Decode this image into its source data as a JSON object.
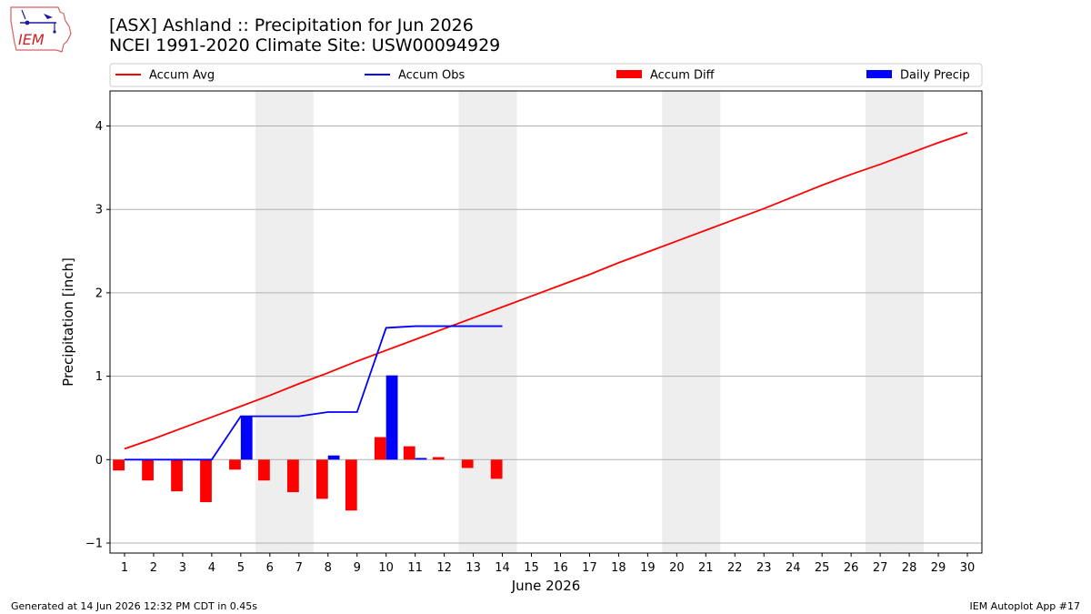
{
  "header": {
    "title_line1": "[ASX] Ashland :: Precipitation for Jun 2026",
    "title_line2": "NCEI 1991-2020 Climate Site: USW00094929",
    "logo_text": "IEM"
  },
  "footer": {
    "left": "Generated at 14 Jun 2026 12:32 PM CDT in 0.45s",
    "right": "IEM Autoplot App #17"
  },
  "colors": {
    "avg": "#ff0000",
    "obs": "#0000ff",
    "diff": "#ff0000",
    "daily": "#0000ff",
    "weekend": "#eeeeee",
    "grid": "#b0b0b0"
  },
  "chart_data": {
    "type": "bar",
    "xlabel": "June 2026",
    "ylabel": "Precipitation [inch]",
    "ylim": [
      -1.12,
      4.42
    ],
    "xlim": [
      0.5,
      30.5
    ],
    "yticks": [
      -1,
      0,
      1,
      2,
      3,
      4
    ],
    "xticks": [
      1,
      2,
      3,
      4,
      5,
      6,
      7,
      8,
      9,
      10,
      11,
      12,
      13,
      14,
      15,
      16,
      17,
      18,
      19,
      20,
      21,
      22,
      23,
      24,
      25,
      26,
      27,
      28,
      29,
      30
    ],
    "grid": "horizontal",
    "legend_position": "top",
    "legend": [
      "Accum Avg",
      "Accum Obs",
      "Accum Diff",
      "Daily Precip"
    ],
    "weekend_days": [
      6,
      7,
      13,
      14,
      20,
      21,
      27,
      28
    ],
    "accum_avg": {
      "name": "Accum Avg",
      "x": [
        1,
        2,
        3,
        4,
        5,
        6,
        7,
        8,
        9,
        10,
        11,
        12,
        13,
        14,
        15,
        16,
        17,
        18,
        19,
        20,
        21,
        22,
        23,
        24,
        25,
        26,
        27,
        28,
        29,
        30
      ],
      "values": [
        0.13,
        0.25,
        0.38,
        0.51,
        0.64,
        0.77,
        0.91,
        1.04,
        1.18,
        1.31,
        1.44,
        1.57,
        1.7,
        1.83,
        1.96,
        2.09,
        2.22,
        2.36,
        2.49,
        2.62,
        2.75,
        2.88,
        3.01,
        3.15,
        3.29,
        3.42,
        3.54,
        3.67,
        3.8,
        3.92
      ]
    },
    "accum_obs": {
      "name": "Accum Obs",
      "x": [
        1,
        2,
        3,
        4,
        5,
        6,
        7,
        8,
        9,
        10,
        11,
        12,
        13,
        14
      ],
      "values": [
        0,
        0,
        0,
        0,
        0.52,
        0.52,
        0.52,
        0.57,
        0.57,
        1.58,
        1.6,
        1.6,
        1.6,
        1.6
      ]
    },
    "accum_diff": {
      "name": "Accum Diff",
      "x": [
        1,
        2,
        3,
        4,
        5,
        6,
        7,
        8,
        9,
        10,
        11,
        12,
        13,
        14
      ],
      "values": [
        -0.13,
        -0.25,
        -0.38,
        -0.51,
        -0.12,
        -0.25,
        -0.39,
        -0.47,
        -0.61,
        0.27,
        0.16,
        0.03,
        -0.1,
        -0.23
      ]
    },
    "daily_precip": {
      "name": "Daily Precip",
      "x": [
        1,
        2,
        3,
        4,
        5,
        6,
        7,
        8,
        9,
        10,
        11,
        12,
        13,
        14
      ],
      "values": [
        0,
        0,
        0,
        0,
        0.52,
        0,
        0,
        0.05,
        0,
        1.01,
        0.02,
        0,
        0,
        0
      ]
    }
  }
}
